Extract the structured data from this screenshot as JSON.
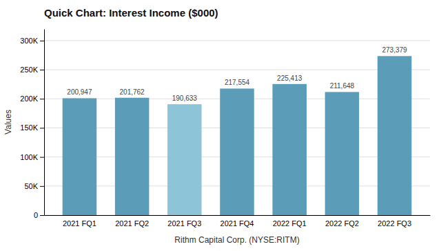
{
  "chart_data": {
    "type": "bar",
    "title": "Quick Chart: Interest Income ($000)",
    "xlabel": "Rithm Capital Corp. (NYSE:RITM)",
    "ylabel": "Values",
    "categories": [
      "2021 FQ1",
      "2021 FQ2",
      "2021 FQ3",
      "2021 FQ4",
      "2022 FQ1",
      "2022 FQ2",
      "2022 FQ3"
    ],
    "values": [
      200947,
      201762,
      190633,
      217554,
      225413,
      211648,
      273379
    ],
    "value_labels": [
      "200,947",
      "201,762",
      "190,633",
      "217,554",
      "225,413",
      "211,648",
      "273,379"
    ],
    "colors": [
      "#5b9db8",
      "#5b9db8",
      "#8ec4d8",
      "#5b9db8",
      "#5b9db8",
      "#5b9db8",
      "#5b9db8"
    ],
    "ylim": [
      0,
      320000
    ],
    "yticks": [
      0,
      {
        "value": 50000,
        "label": "50K"
      },
      {
        "value": 100000,
        "label": "100K"
      },
      {
        "value": 150000,
        "label": "150K"
      },
      {
        "value": 200000,
        "label": "200K"
      },
      {
        "value": 250000,
        "label": "250K"
      },
      {
        "value": 300000,
        "label": "300K"
      }
    ],
    "grid": true,
    "data_labels": true
  }
}
